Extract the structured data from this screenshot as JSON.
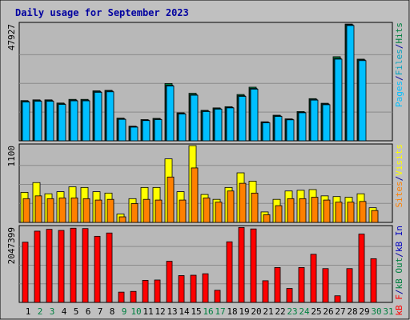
{
  "colors": {
    "background": "#c0c0c0",
    "plot_background": "#b8b8b8",
    "gridline": "#8a8a8a",
    "pages": "#00bfff",
    "files": "#00a0c0",
    "hits": "#008040",
    "visits": "#ffff00",
    "sites": "#ff8000",
    "kb_in": "#0000c0",
    "kb_out": "#008040",
    "kb_f": "#ff0000",
    "title": "#0000a0",
    "weekend_label": "#008040",
    "weekday_label": "#000000"
  },
  "chart_data": {
    "type": "bar",
    "title": "Daily usage for September 2023",
    "categories": [
      "1",
      "2",
      "3",
      "4",
      "5",
      "6",
      "7",
      "8",
      "9",
      "10",
      "11",
      "12",
      "13",
      "14",
      "15",
      "16",
      "17",
      "18",
      "19",
      "20",
      "21",
      "22",
      "23",
      "24",
      "25",
      "26",
      "27",
      "28",
      "29",
      "30",
      "31"
    ],
    "weekend_days": [
      2,
      3,
      9,
      10,
      16,
      17,
      23,
      24,
      30,
      31
    ],
    "panels": [
      {
        "name": "hits-files-pages",
        "ymax_label": "47927",
        "ymax": 47927,
        "legend": [
          "Pages",
          "/",
          "Files",
          "/",
          "Hits"
        ],
        "legend_colors": [
          "pages",
          "title",
          "files",
          "title",
          "hits"
        ],
        "series": [
          {
            "name": "Hits",
            "values": [
              16500,
              16800,
              16800,
              15500,
              17000,
              17000,
              20500,
              20700,
              9300,
              6000,
              8700,
              9200,
              23500,
              11500,
              19500,
              12500,
              13500,
              14000,
              19000,
              22000,
              7800,
              10500,
              9000,
              12000,
              17300,
              15400,
              34500,
              47900,
              33500,
              0,
              0
            ]
          },
          {
            "name": "Files",
            "values": [
              16200,
              16500,
              16500,
              15200,
              16700,
              16700,
              20200,
              20400,
              9000,
              5800,
              8500,
              8900,
              22800,
              11200,
              19000,
              12200,
              13200,
              13700,
              18500,
              21500,
              7600,
              10200,
              8800,
              11700,
              17000,
              15100,
              33800,
              47600,
              33200,
              0,
              0
            ]
          },
          {
            "name": "Pages",
            "values": [
              15900,
              16200,
              16200,
              14900,
              16400,
              16400,
              19900,
              20100,
              8800,
              5600,
              8300,
              8700,
              22500,
              11000,
              18700,
              12000,
              13000,
              13500,
              18200,
              21200,
              7400,
              10000,
              8600,
              11500,
              16700,
              14800,
              33500,
              47300,
              32900,
              0,
              0
            ]
          }
        ]
      },
      {
        "name": "visits-sites",
        "ymax_label": "1100",
        "ymax": 1100,
        "legend": [
          "Sites",
          "/",
          "Visits"
        ],
        "legend_colors": [
          "sites",
          "title",
          "visits"
        ],
        "series": [
          {
            "name": "Visits",
            "values": [
              430,
              570,
              410,
              440,
              510,
              500,
              440,
              420,
              120,
              340,
              500,
              500,
              910,
              440,
              1100,
              400,
              330,
              500,
              710,
              590,
              150,
              330,
              450,
              460,
              470,
              380,
              370,
              360,
              410,
              210,
              0
            ]
          },
          {
            "name": "Sites",
            "values": [
              340,
              380,
              340,
              350,
              350,
              340,
              320,
              330,
              80,
              270,
              330,
              320,
              650,
              320,
              780,
              350,
              290,
              450,
              560,
              420,
              110,
              240,
              340,
              340,
              360,
              320,
              290,
              290,
              300,
              170,
              0
            ]
          }
        ]
      },
      {
        "name": "kbytes",
        "ymax_label": "2047399",
        "ymax": 2047399,
        "legend": [
          "kB F",
          "/",
          "kB Out",
          "/",
          "kB In"
        ],
        "legend_colors": [
          "kb_f",
          "title",
          "kb_out",
          "title",
          "kb_in"
        ],
        "series": [
          {
            "name": "kB F",
            "values": [
              1640000,
              1940000,
              1990000,
              1960000,
              2020000,
              2010000,
              1800000,
              1890000,
              280000,
              300000,
              600000,
              610000,
              1120000,
              730000,
              740000,
              780000,
              330000,
              1650000,
              2040000,
              2000000,
              590000,
              950000,
              380000,
              950000,
              1310000,
              920000,
              180000,
              920000,
              1860000,
              1190000,
              0
            ]
          }
        ]
      }
    ]
  }
}
